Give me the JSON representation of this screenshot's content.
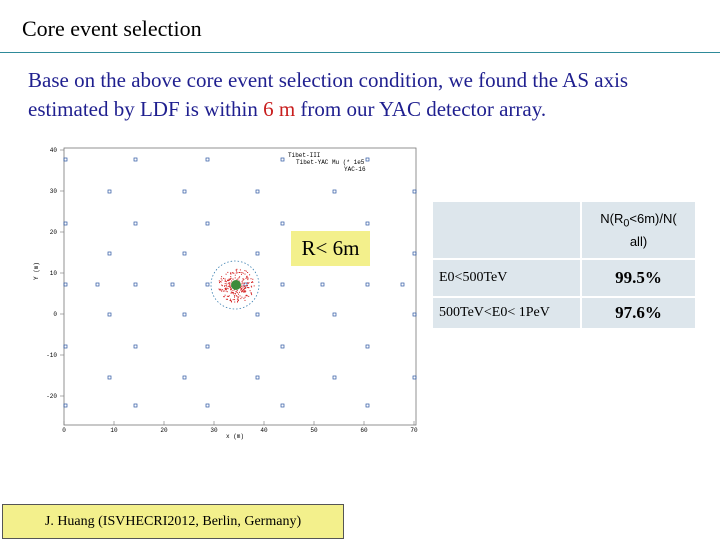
{
  "slide": {
    "title": "Core  event  selection",
    "subtitle_part1": "Base on the above core event selection condition, we found the  AS  axis  estimated by LDF  is within ",
    "subtitle_highlight": "6 m",
    "subtitle_part2": " from  our  YAC detector array.",
    "radius_label": "R< 6m",
    "credit": "J. Huang  (ISVHECRI2012,  Berlin,  Germany)"
  },
  "plot": {
    "x_label": "x (m)",
    "y_label": "Y (m)",
    "x_ticks": [
      "0",
      "10",
      "20",
      "30",
      "40",
      "50",
      "60",
      "70"
    ],
    "y_ticks": [
      "40",
      "30",
      "20",
      "10",
      "0",
      "-10",
      "-20"
    ],
    "legend": [
      "Tibet-III",
      "Tibet-YAC Mu (* 1e5",
      "YAC-16"
    ]
  },
  "table": {
    "header": "N(R0<6m)/N(all)",
    "header_main": "N(R",
    "header_sub": "0",
    "header_rest": "<6m)/N(",
    "header_line2": "all)",
    "rows": [
      {
        "label": "E0<500TeV",
        "value": "99.5%"
      },
      {
        "label": "500TeV<E0< 1PeV",
        "value": "97.6%"
      }
    ]
  },
  "colors": {
    "title_rule": "#2e8a99",
    "subtitle": "#1f1f8f",
    "highlight": "#c81e1e",
    "label_bg": "#f3f08c",
    "table_cell": "#dde6ec"
  }
}
